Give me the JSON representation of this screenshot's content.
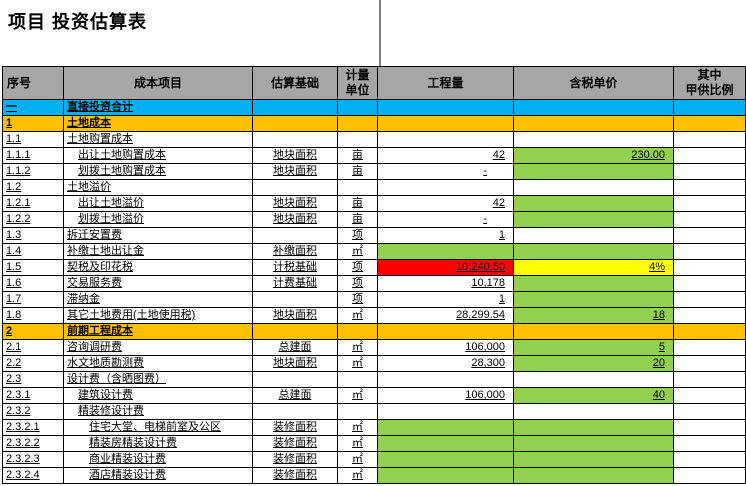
{
  "title": "项目 投资估算表",
  "palette": {
    "green": "#92D050",
    "red": "#FF0000",
    "yellow": "#FFFF00",
    "blue": "#00B0F0",
    "orange": "#FFC000",
    "header_gray": "#A6A6A6",
    "pagebreak_gray": "#7F7F7F"
  },
  "table": {
    "columns": {
      "sn": "序号",
      "name": "成本项目",
      "basis": "估算基础",
      "unit": "计量\n单位",
      "qty": "工程量",
      "price": "含税单价",
      "ratio": "其中\n甲供比例"
    },
    "rows": [
      {
        "sn": "一",
        "name": "直接投资合计",
        "basis": "",
        "unit": "",
        "qty": "",
        "price": "",
        "ratio": "",
        "type": "blue",
        "indent": 0
      },
      {
        "sn": "1",
        "name": "土地成本",
        "basis": "",
        "unit": "",
        "qty": "",
        "price": "",
        "ratio": "",
        "type": "orange",
        "indent": 0
      },
      {
        "sn": "1.1",
        "name": "土地购置成本",
        "basis": "",
        "unit": "",
        "qty": "",
        "price": "",
        "ratio": "",
        "indent": 0
      },
      {
        "sn": "1.1.1",
        "name": "出让土地购置成本",
        "basis": "地块面积",
        "unit": "亩",
        "qty": "42",
        "price": "230.00",
        "ratio": "",
        "indent": 1,
        "price_bg": "green"
      },
      {
        "sn": "1.1.2",
        "name": "划拨土地购置成本",
        "basis": "地块面积",
        "unit": "亩",
        "qty": "-",
        "price": "",
        "ratio": "",
        "indent": 1,
        "price_bg": "green"
      },
      {
        "sn": "1.2",
        "name": "土地溢价",
        "basis": "",
        "unit": "",
        "qty": "",
        "price": "",
        "ratio": "",
        "indent": 0
      },
      {
        "sn": "1.2.1",
        "name": "出让土地溢价",
        "basis": "地块面积",
        "unit": "亩",
        "qty": "42",
        "price": "",
        "ratio": "",
        "indent": 1,
        "price_bg": "green"
      },
      {
        "sn": "1.2.2",
        "name": "划拨土地溢价",
        "basis": "地块面积",
        "unit": "亩",
        "qty": "-",
        "price": "",
        "ratio": "",
        "indent": 1,
        "price_bg": "green"
      },
      {
        "sn": "1.3",
        "name": "拆迁安置费",
        "basis": "",
        "unit": "项",
        "qty": "1",
        "price": "",
        "ratio": "",
        "indent": 0
      },
      {
        "sn": "1.4",
        "name": "补缴土地出让金",
        "basis": "补缴面积",
        "unit": "㎡",
        "qty": "",
        "price": "",
        "ratio": "",
        "indent": 0,
        "qty_bg": "green",
        "price_bg": "green"
      },
      {
        "sn": "1.5",
        "name": "契税及印花税",
        "basis": "计税基础",
        "unit": "项",
        "qty": "10,240.50",
        "price": "4%",
        "ratio": "",
        "indent": 0,
        "qty_bg": "red",
        "price_bg": "yellow"
      },
      {
        "sn": "1.6",
        "name": "交易服务费",
        "basis": "计费基础",
        "unit": "项",
        "qty": "10,178",
        "price": "",
        "ratio": "",
        "indent": 0,
        "price_bg": "green"
      },
      {
        "sn": "1.7",
        "name": "滞纳金",
        "basis": "",
        "unit": "项",
        "qty": "1",
        "price": "",
        "ratio": "",
        "indent": 0,
        "price_bg": "green"
      },
      {
        "sn": "1.8",
        "name": "其它土地费用(土地使用税)",
        "basis": "地块面积",
        "unit": "㎡",
        "qty": "28,299.54",
        "price": "18",
        "ratio": "",
        "indent": 0,
        "price_bg": "green"
      },
      {
        "sn": "2",
        "name": "前期工程成本",
        "basis": "",
        "unit": "",
        "qty": "",
        "price": "",
        "ratio": "",
        "type": "orange",
        "indent": 0
      },
      {
        "sn": "2.1",
        "name": "咨询调研费",
        "basis": "总建面",
        "unit": "㎡",
        "qty": "106,000",
        "price": "5",
        "ratio": "",
        "indent": 0,
        "price_bg": "green"
      },
      {
        "sn": "2.2",
        "name": "水文地质勘测费",
        "basis": "地块面积",
        "unit": "㎡",
        "qty": "28,300",
        "price": "20",
        "ratio": "",
        "indent": 0,
        "price_bg": "green"
      },
      {
        "sn": "2.3",
        "name": "设计费（含晒图费）",
        "basis": "",
        "unit": "",
        "qty": "",
        "price": "",
        "ratio": "",
        "indent": 0
      },
      {
        "sn": "2.3.1",
        "name": "建筑设计费",
        "basis": "总建面",
        "unit": "㎡",
        "qty": "106,000",
        "price": "40",
        "ratio": "",
        "indent": 1,
        "price_bg": "green"
      },
      {
        "sn": "2.3.2",
        "name": "精装修设计费",
        "basis": "",
        "unit": "",
        "qty": "",
        "price": "",
        "ratio": "",
        "indent": 1
      },
      {
        "sn": "2.3.2.1",
        "name": "住宅大堂、电梯前室及公区",
        "basis": "装修面积",
        "unit": "㎡",
        "qty": "",
        "price": "",
        "ratio": "",
        "indent": 2,
        "qty_bg": "green",
        "price_bg": "green"
      },
      {
        "sn": "2.3.2.2",
        "name": "精装房精装设计费",
        "basis": "装修面积",
        "unit": "㎡",
        "qty": "",
        "price": "",
        "ratio": "",
        "indent": 2,
        "qty_bg": "green",
        "price_bg": "green"
      },
      {
        "sn": "2.3.2.3",
        "name": "商业精装设计费",
        "basis": "装修面积",
        "unit": "㎡",
        "qty": "",
        "price": "",
        "ratio": "",
        "indent": 2,
        "qty_bg": "green",
        "price_bg": "green"
      },
      {
        "sn": "2.3.2.4",
        "name": "酒店精装设计费",
        "basis": "装修面积",
        "unit": "㎡",
        "qty": "",
        "price": "",
        "ratio": "",
        "indent": 2,
        "qty_bg": "green",
        "price_bg": "green"
      }
    ]
  }
}
